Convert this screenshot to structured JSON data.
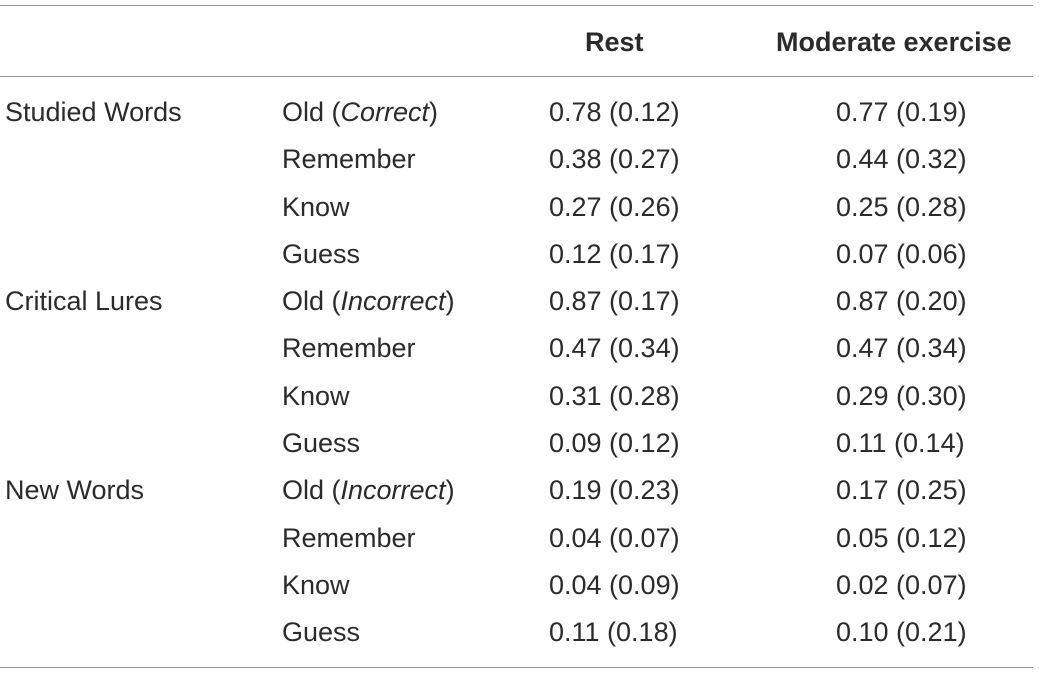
{
  "table": {
    "headers": {
      "group": "",
      "response": "",
      "rest": "Rest",
      "moderate": "Moderate exercise"
    },
    "rows": [
      {
        "group": "Studied Words",
        "resp_pre": "Old (",
        "resp_it": "Correct",
        "resp_post": ")",
        "rest": "0.78 (0.12)",
        "moderate": "0.77 (0.19)"
      },
      {
        "group": "",
        "resp_pre": "Remember",
        "resp_it": "",
        "resp_post": "",
        "rest": "0.38 (0.27)",
        "moderate": "0.44 (0.32)"
      },
      {
        "group": "",
        "resp_pre": "Know",
        "resp_it": "",
        "resp_post": "",
        "rest": "0.27 (0.26)",
        "moderate": "0.25 (0.28)"
      },
      {
        "group": "",
        "resp_pre": "Guess",
        "resp_it": "",
        "resp_post": "",
        "rest": "0.12 (0.17)",
        "moderate": "0.07 (0.06)"
      },
      {
        "group": "Critical Lures",
        "resp_pre": "Old (",
        "resp_it": "Incorrect",
        "resp_post": ")",
        "rest": "0.87 (0.17)",
        "moderate": "0.87 (0.20)"
      },
      {
        "group": "",
        "resp_pre": "Remember",
        "resp_it": "",
        "resp_post": "",
        "rest": "0.47 (0.34)",
        "moderate": "0.47 (0.34)"
      },
      {
        "group": "",
        "resp_pre": "Know",
        "resp_it": "",
        "resp_post": "",
        "rest": "0.31 (0.28)",
        "moderate": "0.29 (0.30)"
      },
      {
        "group": "",
        "resp_pre": "Guess",
        "resp_it": "",
        "resp_post": "",
        "rest": "0.09 (0.12)",
        "moderate": "0.11 (0.14)"
      },
      {
        "group": "New Words",
        "resp_pre": "Old (",
        "resp_it": "Incorrect",
        "resp_post": ")",
        "rest": "0.19 (0.23)",
        "moderate": "0.17 (0.25)"
      },
      {
        "group": "",
        "resp_pre": "Remember",
        "resp_it": "",
        "resp_post": "",
        "rest": "0.04 (0.07)",
        "moderate": "0.05 (0.12)"
      },
      {
        "group": "",
        "resp_pre": "Know",
        "resp_it": "",
        "resp_post": "",
        "rest": "0.04 (0.09)",
        "moderate": "0.02 (0.07)"
      },
      {
        "group": "",
        "resp_pre": "Guess",
        "resp_it": "",
        "resp_post": "",
        "rest": "0.11 (0.18)",
        "moderate": "0.10 (0.21)"
      }
    ]
  }
}
